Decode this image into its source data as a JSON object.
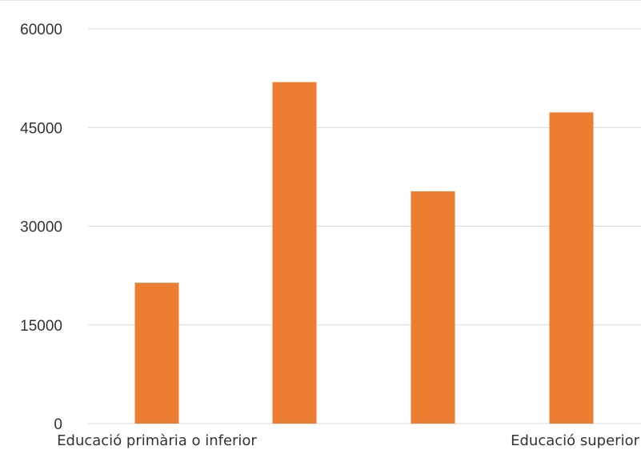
{
  "chart_data": {
    "type": "bar",
    "categories": [
      "Educació primària o inferior",
      "",
      "",
      "Educació superior"
    ],
    "values": [
      21400,
      51900,
      35300,
      47300
    ],
    "yticks": [
      0,
      15000,
      30000,
      45000,
      60000
    ],
    "ylim": [
      0,
      60000
    ],
    "grid": true,
    "bar_color": "#ED7D31",
    "grid_color": "#d9d9d9",
    "title": "",
    "xlabel": "",
    "ylabel": ""
  }
}
